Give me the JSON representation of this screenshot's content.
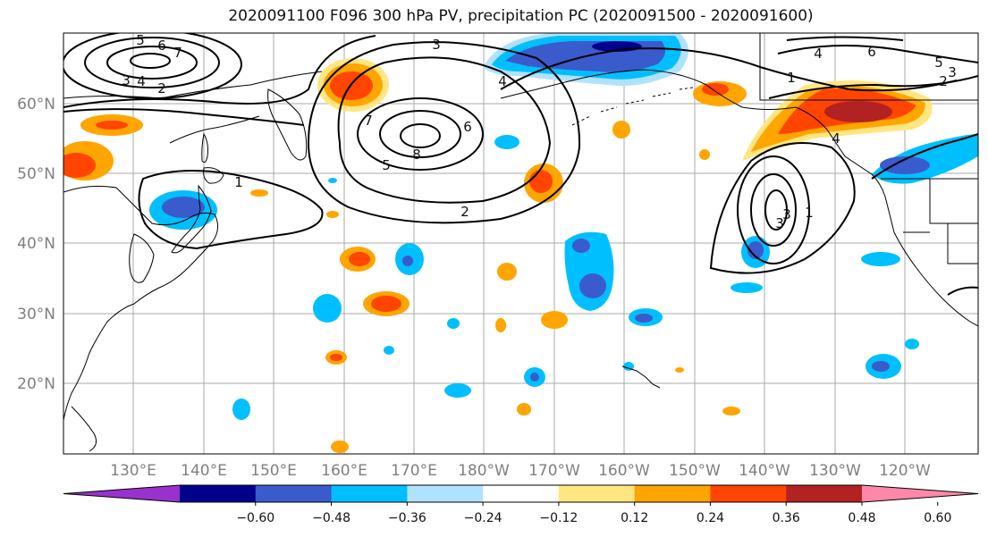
{
  "title": "2020091100 F096 300 hPa PV, precipitation PC (2020091500 - 2020091600)",
  "map": {
    "lon_ticks": [
      "130°E",
      "140°E",
      "150°E",
      "160°E",
      "170°E",
      "180°W",
      "170°W",
      "160°W",
      "150°W",
      "140°W",
      "130°W",
      "120°W"
    ],
    "lat_ticks": [
      "60°N",
      "50°N",
      "40°N",
      "30°N",
      "20°N"
    ],
    "grid": true,
    "contour_labels": [
      "5",
      "6",
      "7",
      "4",
      "3",
      "2",
      "3",
      "4",
      "6",
      "7",
      "8",
      "5",
      "2",
      "1",
      "4",
      "3",
      "1",
      "6",
      "5",
      "3",
      "2",
      "1",
      "4",
      "3"
    ]
  },
  "colorbar": {
    "ticks": [
      "−0.60",
      "−0.48",
      "−0.36",
      "−0.24",
      "−0.12",
      "0.12",
      "0.24",
      "0.36",
      "0.48",
      "0.60"
    ],
    "colors": [
      "#9932CC",
      "#00008B",
      "#3A5BCC",
      "#00BFFF",
      "#B0E2FF",
      "#FFFFFF",
      "#FFE680",
      "#FFA500",
      "#FF4500",
      "#B22222",
      "#FF88AA"
    ]
  }
}
